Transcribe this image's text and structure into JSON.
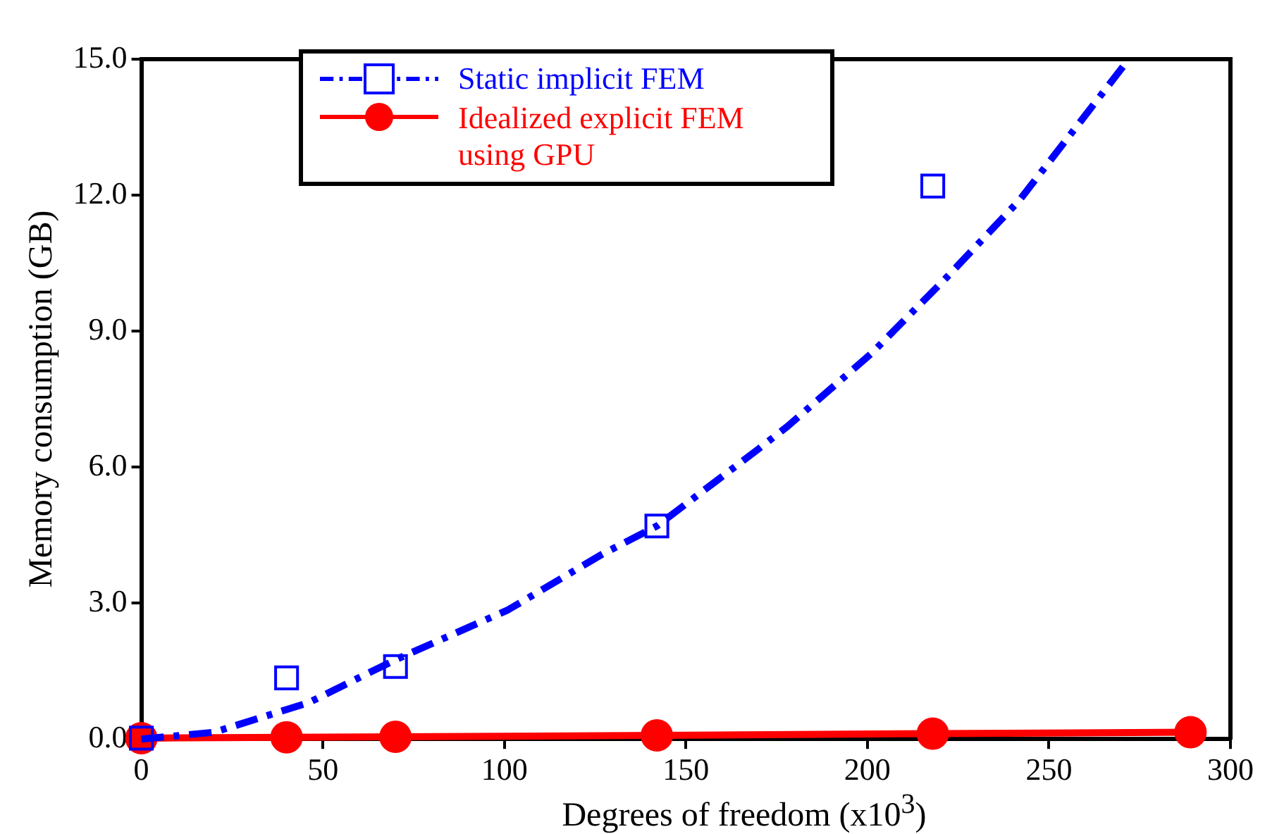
{
  "chart_data": {
    "type": "scatter",
    "xlabel": "Degrees of freedom (x10$^{3}$)",
    "ylabel": "Memory consumption (GB)",
    "xlim": [
      0,
      300
    ],
    "xticks": [
      0,
      50,
      100,
      150,
      200,
      250,
      300
    ],
    "ylim": [
      0,
      15
    ],
    "yticks": [
      {
        "value": 0,
        "label": "0.0"
      },
      {
        "value": 3,
        "label": "3.0"
      },
      {
        "value": 6,
        "label": "6.0"
      },
      {
        "value": 9,
        "label": "9.0"
      },
      {
        "value": 12,
        "label": "12.0"
      },
      {
        "value": 15,
        "label": "15.0"
      }
    ],
    "grid": false,
    "legend": "top left",
    "series": [
      {
        "name": "Static implicit FEM",
        "color": "#0000ff",
        "marker": "square",
        "x": [
          0,
          40,
          70,
          142,
          218
        ],
        "values": [
          0.02,
          1.35,
          1.6,
          4.7,
          12.2
        ]
      },
      {
        "type": "line",
        "color": "#0000ff",
        "line_style": "dashed",
        "marker": "none",
        "x": [
          0,
          20,
          46,
          70,
          101,
          127,
          142,
          170,
          178,
          201,
          222,
          242,
          272
        ],
        "values": [
          0,
          0.15,
          0.8,
          1.75,
          2.85,
          4.08,
          4.7,
          6.4,
          6.9,
          8.5,
          10.2,
          11.9,
          15
        ]
      },
      {
        "name": "Idealized explicit FEM using GPU",
        "type": "line",
        "color": "#ff0000",
        "line_style": "solid",
        "marker": "circle",
        "x": [
          0,
          40,
          70,
          142,
          218,
          289
        ],
        "values": [
          0.02,
          0.04,
          0.05,
          0.08,
          0.12,
          0.15
        ]
      }
    ]
  }
}
